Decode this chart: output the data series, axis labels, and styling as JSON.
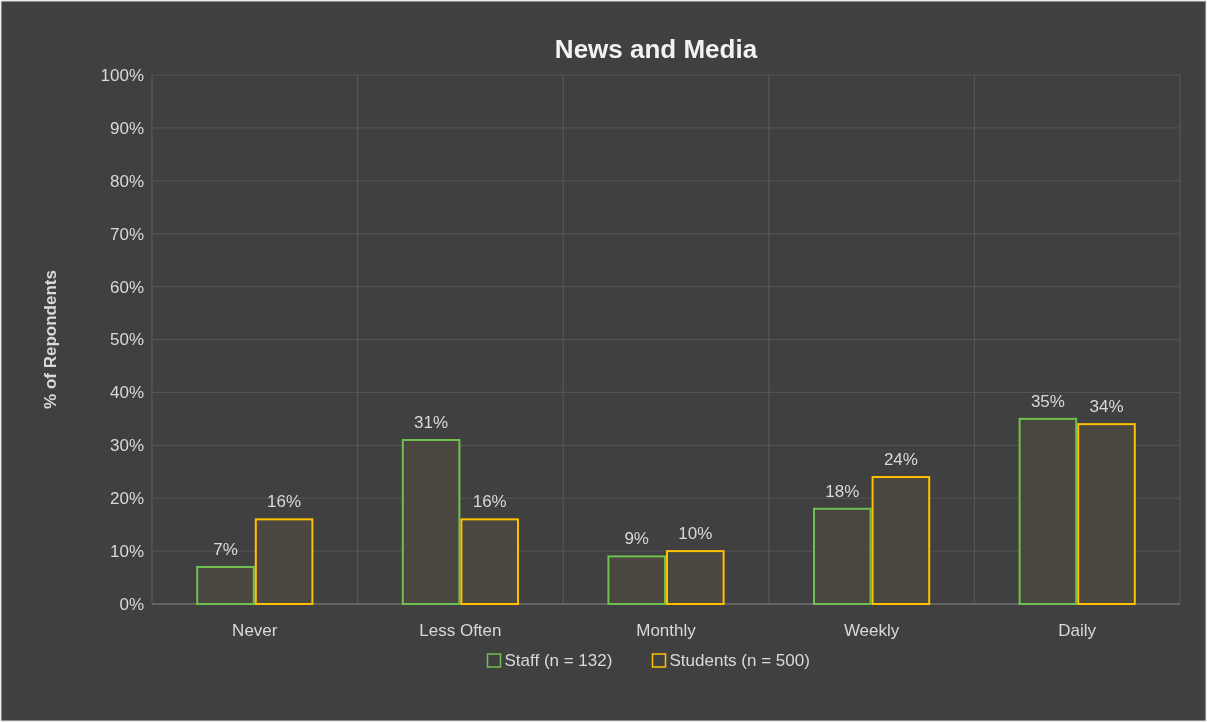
{
  "chart_data": {
    "type": "bar",
    "title": "News and Media",
    "ylabel": "% of Repondents",
    "categories": [
      "Never",
      "Less Often",
      "Monthly",
      "Weekly",
      "Daily"
    ],
    "series": [
      {
        "name": "Staff (n = 132)",
        "color": "#70c050",
        "values": [
          7,
          31,
          9,
          18,
          35
        ],
        "value_labels": [
          "7%",
          "31%",
          "9%",
          "18%",
          "35%"
        ]
      },
      {
        "name": "Students (n = 500)",
        "color": "#ffc000",
        "values": [
          16,
          16,
          10,
          24,
          34
        ],
        "value_labels": [
          "16%",
          "16%",
          "10%",
          "24%",
          "34%"
        ]
      }
    ],
    "ylim": [
      0,
      100
    ],
    "yticks": [
      {
        "value": 0,
        "label": "0%"
      },
      {
        "value": 10,
        "label": "10%"
      },
      {
        "value": 20,
        "label": "20%"
      },
      {
        "value": 30,
        "label": "30%"
      },
      {
        "value": 40,
        "label": "40%"
      },
      {
        "value": 50,
        "label": "50%"
      },
      {
        "value": 60,
        "label": "60%"
      },
      {
        "value": 70,
        "label": "70%"
      },
      {
        "value": 80,
        "label": "80%"
      },
      {
        "value": 90,
        "label": "90%"
      },
      {
        "value": 100,
        "label": "100%"
      }
    ],
    "grid": true,
    "legend": "bottom"
  }
}
